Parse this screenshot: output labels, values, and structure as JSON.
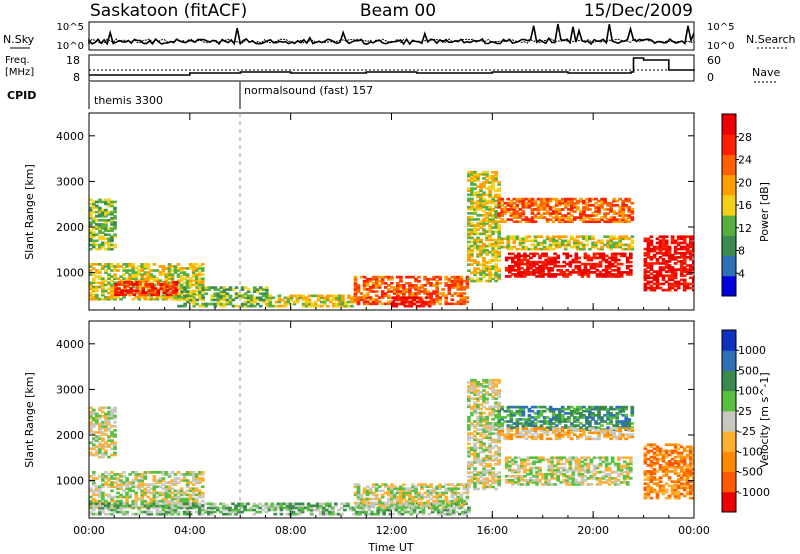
{
  "header": {
    "station": "Saskatoon (fitACF)",
    "beam": "Beam 00",
    "date": "15/Dec/2009"
  },
  "top_panels": {
    "nsky_label": "N.Sky",
    "nsearch_label": "N.Search",
    "noise_ticks_left": [
      "10^5",
      "10^0"
    ],
    "noise_ticks_right": [
      "10^5",
      "10^0"
    ],
    "freq_label_1": "Freq.",
    "freq_label_2": "[MHz]",
    "freq_ticks": [
      "18",
      "8"
    ],
    "nave_label": "Nave",
    "nave_ticks": [
      "60",
      "0"
    ],
    "cpid_label": "CPID",
    "cpid_segments": [
      {
        "label": "themis 3300",
        "start_hour": 0
      },
      {
        "label": "normalsound (fast) 157",
        "start_hour": 6
      }
    ]
  },
  "colors": {
    "power": [
      "#0000dd",
      "#2f6fb8",
      "#3b8a4f",
      "#55b040",
      "#f5d018",
      "#ffa000",
      "#ff6000",
      "#ff2000",
      "#ee0000"
    ],
    "velocity": [
      "#ee0000",
      "#ff5a00",
      "#ff8c00",
      "#ffb030",
      "#c8c8c0",
      "#58c040",
      "#3a8a4e",
      "#2f6fb8",
      "#1030c0"
    ]
  },
  "chart_data": [
    {
      "type": "heatmap",
      "name": "power",
      "ylabel": "Slant Range [km]",
      "xlabel": "",
      "xlim": [
        0,
        24
      ],
      "ylim": [
        180,
        4500
      ],
      "x_ticks": [
        "00:00",
        "04:00",
        "08:00",
        "12:00",
        "16:00",
        "20:00",
        "00:00"
      ],
      "y_ticks": [
        "1000",
        "2000",
        "3000",
        "4000"
      ],
      "colorbar_label": "Power [dB]",
      "colorbar_ticks": [
        "28",
        "24",
        "20",
        "16",
        "12",
        "8",
        "4"
      ],
      "regions": [
        {
          "t": [
            0.0,
            1.0
          ],
          "r": [
            1500,
            2600
          ],
          "level": 3
        },
        {
          "t": [
            0.0,
            4.5
          ],
          "r": [
            400,
            1200
          ],
          "level": 4
        },
        {
          "t": [
            1.0,
            3.5
          ],
          "r": [
            500,
            800
          ],
          "level": 7
        },
        {
          "t": [
            3.5,
            7.0
          ],
          "r": [
            250,
            700
          ],
          "level": 3
        },
        {
          "t": [
            7.0,
            10.5
          ],
          "r": [
            250,
            500
          ],
          "level": 4
        },
        {
          "t": [
            10.5,
            15.0
          ],
          "r": [
            300,
            900
          ],
          "level": 6
        },
        {
          "t": [
            12.0,
            13.5
          ],
          "r": [
            250,
            450
          ],
          "level": 8
        },
        {
          "t": [
            15.0,
            16.2
          ],
          "r": [
            800,
            3200
          ],
          "level": 4
        },
        {
          "t": [
            16.2,
            21.5
          ],
          "r": [
            2100,
            2600
          ],
          "level": 6
        },
        {
          "t": [
            16.2,
            21.5
          ],
          "r": [
            1500,
            1800
          ],
          "level": 4
        },
        {
          "t": [
            16.5,
            21.5
          ],
          "r": [
            900,
            1400
          ],
          "level": 8
        },
        {
          "t": [
            22.0,
            24.0
          ],
          "r": [
            600,
            1800
          ],
          "level": 8
        }
      ]
    },
    {
      "type": "heatmap",
      "name": "velocity",
      "ylabel": "Slant Range [km]",
      "xlabel": "Time UT",
      "xlim": [
        0,
        24
      ],
      "ylim": [
        180,
        4500
      ],
      "x_ticks": [
        "00:00",
        "04:00",
        "08:00",
        "12:00",
        "16:00",
        "20:00",
        "00:00"
      ],
      "y_ticks": [
        "1000",
        "2000",
        "3000",
        "4000"
      ],
      "colorbar_label": "Velocity [m s^-1]",
      "colorbar_ticks": [
        "1000",
        "500",
        "100",
        "25",
        "-25",
        "-100",
        "-500",
        "-1000"
      ],
      "regions": [
        {
          "t": [
            0.0,
            1.0
          ],
          "r": [
            1500,
            2600
          ],
          "level": 4
        },
        {
          "t": [
            0.0,
            4.5
          ],
          "r": [
            400,
            1200
          ],
          "level": 4
        },
        {
          "t": [
            0.0,
            15.0
          ],
          "r": [
            250,
            500
          ],
          "level": 5
        },
        {
          "t": [
            10.5,
            15.0
          ],
          "r": [
            400,
            900
          ],
          "level": 4
        },
        {
          "t": [
            15.0,
            16.2
          ],
          "r": [
            800,
            3200
          ],
          "level": 4
        },
        {
          "t": [
            16.2,
            21.5
          ],
          "r": [
            2100,
            2600
          ],
          "level": 6
        },
        {
          "t": [
            16.2,
            21.5
          ],
          "r": [
            1900,
            2150
          ],
          "level": 3
        },
        {
          "t": [
            16.5,
            21.5
          ],
          "r": [
            900,
            1500
          ],
          "level": 4
        },
        {
          "t": [
            22.0,
            24.0
          ],
          "r": [
            600,
            1800
          ],
          "level": 2
        }
      ]
    }
  ]
}
